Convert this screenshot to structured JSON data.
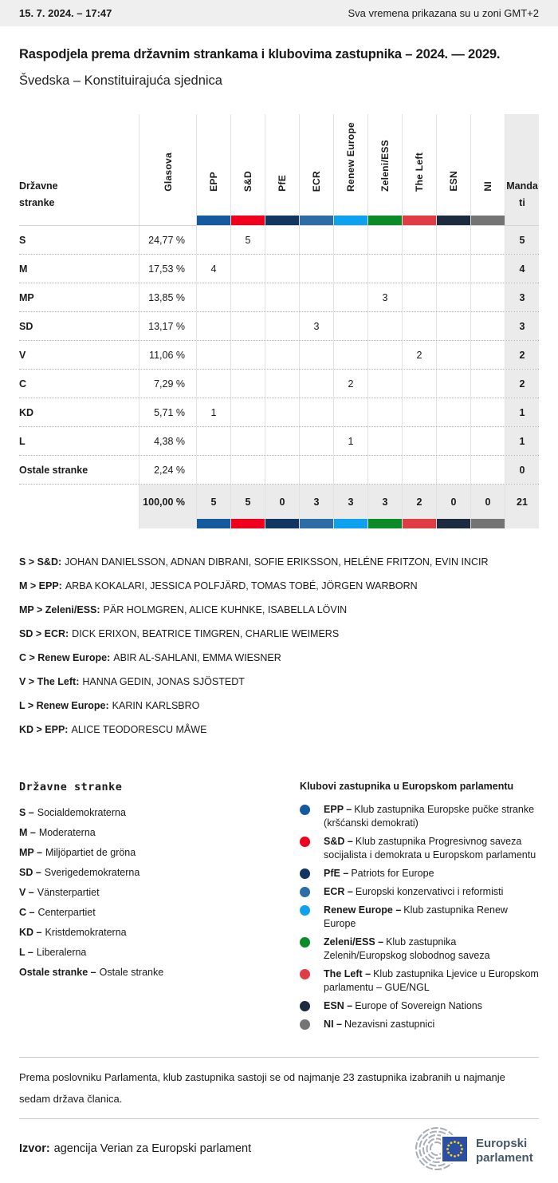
{
  "top_bar": {
    "datetime": "15. 7. 2024. – 17:47",
    "timezone_note": "Sva vremena prikazana su u zoni GMT+2"
  },
  "header": {
    "title": "Raspodjela prema državnim strankama i klubovima zastupnika – 2024. — 2029.",
    "subtitle": "Švedska – Konstituirajuća sjednica"
  },
  "table": {
    "row_header": "Državne\nstranke",
    "votes_header": "Glasova",
    "seats_header": "Mandati",
    "groups": [
      {
        "code": "EPP",
        "color": "#155a9e"
      },
      {
        "code": "S&D",
        "color": "#f0001c"
      },
      {
        "code": "PfE",
        "color": "#12365f"
      },
      {
        "code": "ECR",
        "color": "#2d6ca5"
      },
      {
        "code": "Renew Europe",
        "color": "#0ea1f0"
      },
      {
        "code": "Zeleni/ESS",
        "color": "#0b8b28"
      },
      {
        "code": "The Left",
        "color": "#e03c46"
      },
      {
        "code": "ESN",
        "color": "#1c2b40"
      },
      {
        "code": "NI",
        "color": "#747474"
      }
    ],
    "rows": [
      {
        "party": "S",
        "votes": "24,77 %",
        "seats_by_group": [
          "",
          "5",
          "",
          "",
          "",
          "",
          "",
          "",
          ""
        ],
        "seats": "5"
      },
      {
        "party": "M",
        "votes": "17,53 %",
        "seats_by_group": [
          "4",
          "",
          "",
          "",
          "",
          "",
          "",
          "",
          ""
        ],
        "seats": "4"
      },
      {
        "party": "MP",
        "votes": "13,85 %",
        "seats_by_group": [
          "",
          "",
          "",
          "",
          "",
          "3",
          "",
          "",
          ""
        ],
        "seats": "3"
      },
      {
        "party": "SD",
        "votes": "13,17 %",
        "seats_by_group": [
          "",
          "",
          "",
          "3",
          "",
          "",
          "",
          "",
          ""
        ],
        "seats": "3"
      },
      {
        "party": "V",
        "votes": "11,06 %",
        "seats_by_group": [
          "",
          "",
          "",
          "",
          "",
          "",
          "2",
          "",
          ""
        ],
        "seats": "2"
      },
      {
        "party": "C",
        "votes": "7,29 %",
        "seats_by_group": [
          "",
          "",
          "",
          "",
          "2",
          "",
          "",
          "",
          ""
        ],
        "seats": "2"
      },
      {
        "party": "KD",
        "votes": "5,71 %",
        "seats_by_group": [
          "1",
          "",
          "",
          "",
          "",
          "",
          "",
          "",
          ""
        ],
        "seats": "1"
      },
      {
        "party": "L",
        "votes": "4,38 %",
        "seats_by_group": [
          "",
          "",
          "",
          "",
          "1",
          "",
          "",
          "",
          ""
        ],
        "seats": "1"
      },
      {
        "party": "Ostale stranke",
        "votes": "2,24 %",
        "seats_by_group": [
          "",
          "",
          "",
          "",
          "",
          "",
          "",
          "",
          ""
        ],
        "seats": "0"
      }
    ],
    "total": {
      "votes": "100,00 %",
      "seats_by_group": [
        "5",
        "5",
        "0",
        "3",
        "3",
        "3",
        "2",
        "0",
        "0"
      ],
      "seats": "21"
    }
  },
  "mep_assignments": [
    {
      "label": "S > S&D:",
      "names": "JOHAN DANIELSSON, ADNAN DIBRANI, SOFIE ERIKSSON, HELÉNE FRITZON, EVIN INCIR"
    },
    {
      "label": "M > EPP:",
      "names": "ARBA KOKALARI, JESSICA POLFJÄRD, TOMAS TOBÉ, JÖRGEN WARBORN"
    },
    {
      "label": "MP > Zeleni/ESS:",
      "names": "PÄR HOLMGREN, ALICE KUHNKE, ISABELLA LÖVIN"
    },
    {
      "label": "SD > ECR:",
      "names": "DICK ERIXON, BEATRICE TIMGREN, CHARLIE WEIMERS"
    },
    {
      "label": "C > Renew Europe:",
      "names": "ABIR AL-SAHLANI, EMMA WIESNER"
    },
    {
      "label": "V > The Left:",
      "names": "HANNA GEDIN, JONAS SJÖSTEDT"
    },
    {
      "label": "L > Renew Europe:",
      "names": "KARIN KARLSBRO"
    },
    {
      "label": "KD > EPP:",
      "names": "ALICE TEODORESCU MÅWE"
    }
  ],
  "party_legend": {
    "title": "Državne stranke",
    "items": [
      {
        "code": "S –",
        "name": "Socialdemokraterna"
      },
      {
        "code": "M –",
        "name": "Moderaterna"
      },
      {
        "code": "MP –",
        "name": "Miljöpartiet de gröna"
      },
      {
        "code": "SD –",
        "name": "Sverigedemokraterna"
      },
      {
        "code": "V –",
        "name": "Vänsterpartiet"
      },
      {
        "code": "C –",
        "name": "Centerpartiet"
      },
      {
        "code": "KD –",
        "name": "Kristdemokraterna"
      },
      {
        "code": "L –",
        "name": "Liberalerna"
      },
      {
        "code": "Ostale stranke –",
        "name": "Ostale stranke"
      }
    ]
  },
  "group_legend": {
    "title": "Klubovi zastupnika u Europskom parlamentu",
    "items": [
      {
        "code": "EPP –",
        "desc": "Klub zastupnika Europske pučke stranke (kršćanski demokrati)",
        "color": "#155a9e"
      },
      {
        "code": "S&D –",
        "desc": "Klub zastupnika Progresivnog saveza socijalista i demokrata u Europskom parlamentu",
        "color": "#f0001c"
      },
      {
        "code": "PfE –",
        "desc": "Patriots for Europe",
        "color": "#12365f"
      },
      {
        "code": "ECR –",
        "desc": "Europski konzervativci i reformisti",
        "color": "#2d6ca5"
      },
      {
        "code": "Renew Europe –",
        "desc": "Klub zastupnika Renew Europe",
        "color": "#0ea1f0"
      },
      {
        "code": "Zeleni/ESS –",
        "desc": "Klub zastupnika Zelenih/Europskog slobodnog saveza",
        "color": "#0b8b28"
      },
      {
        "code": "The Left –",
        "desc": "Klub zastupnika Ljevice u Europskom parlamentu – GUE/NGL",
        "color": "#e03c46"
      },
      {
        "code": "ESN –",
        "desc": "Europe of Sovereign Nations",
        "color": "#1c2b40"
      },
      {
        "code": "NI –",
        "desc": "Nezavisni zastupnici",
        "color": "#747474"
      }
    ]
  },
  "footer": {
    "note": "Prema poslovniku Parlamenta, klub zastupnika sastoji se od najmanje 23 zastupnika izabranih u najmanje sedam država članica.",
    "source_label": "Izvor:",
    "source_text": "agencija Verian za Europski parlament",
    "logo_line1": "Europski",
    "logo_line2": "parlament",
    "logo_colors": {
      "flag_blue": "#2b4fa2",
      "star_yellow": "#ffd617",
      "text": "#44566a",
      "arcs": "#a8aeb5"
    }
  }
}
